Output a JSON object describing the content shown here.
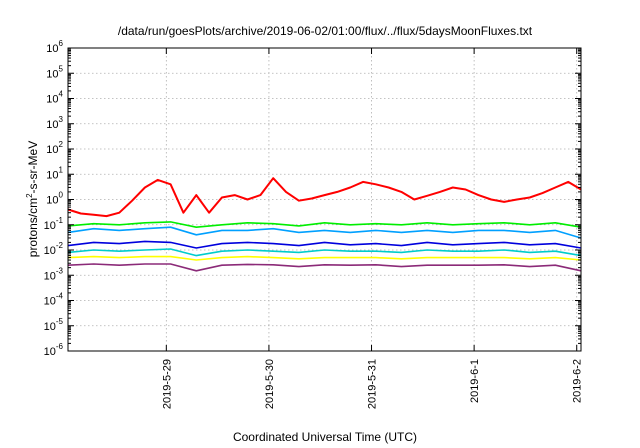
{
  "chart_data": {
    "type": "line",
    "title": "/data/run/goesPlots/archive/2019-06-02/01:00/flux/../flux/5daysMoonFluxes.txt",
    "xlabel": "Coordinated Universal Time (UTC)",
    "ylabel": {
      "prefix": "protons/cm",
      "superscript": "2",
      "suffix": "-s-sr-MeV"
    },
    "yscale": "log",
    "ylim_exponents": [
      -6,
      6
    ],
    "y_tick_labels": [
      {
        "base": "10",
        "exp": "6"
      },
      {
        "base": "10",
        "exp": "5"
      },
      {
        "base": "10",
        "exp": "4"
      },
      {
        "base": "10",
        "exp": "3"
      },
      {
        "base": "10",
        "exp": "2"
      },
      {
        "base": "10",
        "exp": "1"
      },
      {
        "base": "10",
        "exp": "0"
      },
      {
        "base": "10",
        "exp": "-1"
      },
      {
        "base": "10",
        "exp": "-2"
      },
      {
        "base": "10",
        "exp": "-3"
      },
      {
        "base": "10",
        "exp": "-4"
      },
      {
        "base": "10",
        "exp": "-5"
      },
      {
        "base": "10",
        "exp": "-6"
      }
    ],
    "xlim": [
      "2019-05-28T01:00",
      "2019-06-02T01:00"
    ],
    "x_ticks": [
      {
        "label": "2019-5-29",
        "time": "2019-05-29T00:00"
      },
      {
        "label": "2019-5-30",
        "time": "2019-05-30T00:00"
      },
      {
        "label": "2019-5-31",
        "time": "2019-05-31T00:00"
      },
      {
        "label": "2019-6-1",
        "time": "2019-06-01T00:00"
      },
      {
        "label": "2019-6-2",
        "time": "2019-06-02T00:00"
      }
    ],
    "grid": true,
    "legend": "none",
    "series": [
      {
        "color": "#ff0000",
        "x": [
          "2019-05-28T01:00",
          "2019-05-28T04:00",
          "2019-05-28T07:00",
          "2019-05-28T10:00",
          "2019-05-28T13:00",
          "2019-05-28T16:00",
          "2019-05-28T19:00",
          "2019-05-28T22:00",
          "2019-05-29T01:00",
          "2019-05-29T04:00",
          "2019-05-29T07:00",
          "2019-05-29T10:00",
          "2019-05-29T13:00",
          "2019-05-29T16:00",
          "2019-05-29T19:00",
          "2019-05-29T22:00",
          "2019-05-30T01:00",
          "2019-05-30T04:00",
          "2019-05-30T07:00",
          "2019-05-30T10:00",
          "2019-05-30T13:00",
          "2019-05-30T16:00",
          "2019-05-30T19:00",
          "2019-05-30T22:00",
          "2019-05-31T01:00",
          "2019-05-31T04:00",
          "2019-05-31T07:00",
          "2019-05-31T10:00",
          "2019-05-31T13:00",
          "2019-05-31T16:00",
          "2019-05-31T19:00",
          "2019-05-31T22:00",
          "2019-06-01T01:00",
          "2019-06-01T04:00",
          "2019-06-01T07:00",
          "2019-06-01T10:00",
          "2019-06-01T13:00",
          "2019-06-01T16:00",
          "2019-06-01T19:00",
          "2019-06-01T22:00",
          "2019-06-02T01:00"
        ],
        "values": [
          0.4,
          0.28,
          0.25,
          0.22,
          0.3,
          0.9,
          3,
          6,
          4,
          0.3,
          1.5,
          0.3,
          1.2,
          1.5,
          1.0,
          1.5,
          7,
          2,
          0.9,
          1.1,
          1.5,
          2,
          3,
          5,
          4,
          3,
          2,
          1.0,
          1.4,
          2,
          3,
          2.5,
          1.5,
          1.0,
          0.8,
          1.0,
          1.2,
          1.8,
          3,
          5,
          2.5
        ]
      },
      {
        "color": "#00ee00",
        "x": [
          "2019-05-28T01:00",
          "2019-05-28T07:00",
          "2019-05-28T13:00",
          "2019-05-28T19:00",
          "2019-05-29T01:00",
          "2019-05-29T07:00",
          "2019-05-29T13:00",
          "2019-05-29T19:00",
          "2019-05-30T01:00",
          "2019-05-30T07:00",
          "2019-05-30T13:00",
          "2019-05-30T19:00",
          "2019-05-31T01:00",
          "2019-05-31T07:00",
          "2019-05-31T13:00",
          "2019-05-31T19:00",
          "2019-06-01T01:00",
          "2019-06-01T07:00",
          "2019-06-01T13:00",
          "2019-06-01T19:00",
          "2019-06-02T01:00"
        ],
        "values": [
          0.09,
          0.11,
          0.1,
          0.12,
          0.13,
          0.08,
          0.1,
          0.12,
          0.11,
          0.09,
          0.12,
          0.1,
          0.11,
          0.1,
          0.12,
          0.1,
          0.11,
          0.12,
          0.1,
          0.12,
          0.08
        ]
      },
      {
        "color": "#00a0ff",
        "x": [
          "2019-05-28T01:00",
          "2019-05-28T07:00",
          "2019-05-28T13:00",
          "2019-05-28T19:00",
          "2019-05-29T01:00",
          "2019-05-29T07:00",
          "2019-05-29T13:00",
          "2019-05-29T19:00",
          "2019-05-30T01:00",
          "2019-05-30T07:00",
          "2019-05-30T13:00",
          "2019-05-30T19:00",
          "2019-05-31T01:00",
          "2019-05-31T07:00",
          "2019-05-31T13:00",
          "2019-05-31T19:00",
          "2019-06-01T01:00",
          "2019-06-01T07:00",
          "2019-06-01T13:00",
          "2019-06-01T19:00",
          "2019-06-02T01:00"
        ],
        "values": [
          0.05,
          0.07,
          0.06,
          0.07,
          0.08,
          0.04,
          0.06,
          0.06,
          0.07,
          0.05,
          0.06,
          0.05,
          0.06,
          0.05,
          0.06,
          0.05,
          0.06,
          0.06,
          0.05,
          0.06,
          0.03
        ]
      },
      {
        "color": "#0000dd",
        "x": [
          "2019-05-28T01:00",
          "2019-05-28T07:00",
          "2019-05-28T13:00",
          "2019-05-28T19:00",
          "2019-05-29T01:00",
          "2019-05-29T07:00",
          "2019-05-29T13:00",
          "2019-05-29T19:00",
          "2019-05-30T01:00",
          "2019-05-30T07:00",
          "2019-05-30T13:00",
          "2019-05-30T19:00",
          "2019-05-31T01:00",
          "2019-05-31T07:00",
          "2019-05-31T13:00",
          "2019-05-31T19:00",
          "2019-06-01T01:00",
          "2019-06-01T07:00",
          "2019-06-01T13:00",
          "2019-06-01T19:00",
          "2019-06-02T01:00"
        ],
        "values": [
          0.015,
          0.02,
          0.018,
          0.022,
          0.02,
          0.012,
          0.018,
          0.02,
          0.018,
          0.015,
          0.02,
          0.016,
          0.018,
          0.015,
          0.02,
          0.016,
          0.018,
          0.02,
          0.016,
          0.018,
          0.012
        ]
      },
      {
        "color": "#00cccc",
        "x": [
          "2019-05-28T01:00",
          "2019-05-28T07:00",
          "2019-05-28T13:00",
          "2019-05-28T19:00",
          "2019-05-29T01:00",
          "2019-05-29T07:00",
          "2019-05-29T13:00",
          "2019-05-29T19:00",
          "2019-05-30T01:00",
          "2019-05-30T07:00",
          "2019-05-30T13:00",
          "2019-05-30T19:00",
          "2019-05-31T01:00",
          "2019-05-31T07:00",
          "2019-05-31T13:00",
          "2019-05-31T19:00",
          "2019-06-01T01:00",
          "2019-06-01T07:00",
          "2019-06-01T13:00",
          "2019-06-01T19:00",
          "2019-06-02T01:00"
        ],
        "values": [
          0.008,
          0.01,
          0.009,
          0.01,
          0.011,
          0.006,
          0.009,
          0.01,
          0.009,
          0.008,
          0.01,
          0.009,
          0.009,
          0.008,
          0.01,
          0.009,
          0.009,
          0.01,
          0.008,
          0.009,
          0.006
        ]
      },
      {
        "color": "#ffff00",
        "x": [
          "2019-05-28T01:00",
          "2019-05-28T07:00",
          "2019-05-28T13:00",
          "2019-05-28T19:00",
          "2019-05-29T01:00",
          "2019-05-29T07:00",
          "2019-05-29T13:00",
          "2019-05-29T19:00",
          "2019-05-30T01:00",
          "2019-05-30T07:00",
          "2019-05-30T13:00",
          "2019-05-30T19:00",
          "2019-05-31T01:00",
          "2019-05-31T07:00",
          "2019-05-31T13:00",
          "2019-05-31T19:00",
          "2019-06-01T01:00",
          "2019-06-01T07:00",
          "2019-06-01T13:00",
          "2019-06-01T19:00",
          "2019-06-02T01:00"
        ],
        "values": [
          0.005,
          0.0055,
          0.005,
          0.0055,
          0.0055,
          0.004,
          0.005,
          0.0055,
          0.005,
          0.0045,
          0.005,
          0.005,
          0.005,
          0.0045,
          0.005,
          0.005,
          0.005,
          0.005,
          0.0045,
          0.005,
          0.004
        ]
      },
      {
        "color": "#8b2a78",
        "x": [
          "2019-05-28T01:00",
          "2019-05-28T07:00",
          "2019-05-28T13:00",
          "2019-05-28T19:00",
          "2019-05-29T01:00",
          "2019-05-29T07:00",
          "2019-05-29T13:00",
          "2019-05-29T19:00",
          "2019-05-30T01:00",
          "2019-05-30T07:00",
          "2019-05-30T13:00",
          "2019-05-30T19:00",
          "2019-05-31T01:00",
          "2019-05-31T07:00",
          "2019-05-31T13:00",
          "2019-05-31T19:00",
          "2019-06-01T01:00",
          "2019-06-01T07:00",
          "2019-06-01T13:00",
          "2019-06-01T19:00",
          "2019-06-02T01:00"
        ],
        "values": [
          0.0025,
          0.0028,
          0.0025,
          0.0028,
          0.0028,
          0.0015,
          0.0025,
          0.0027,
          0.0026,
          0.0022,
          0.0026,
          0.0025,
          0.0026,
          0.0022,
          0.0025,
          0.0025,
          0.0025,
          0.0026,
          0.0022,
          0.0025,
          0.0015
        ]
      }
    ]
  }
}
